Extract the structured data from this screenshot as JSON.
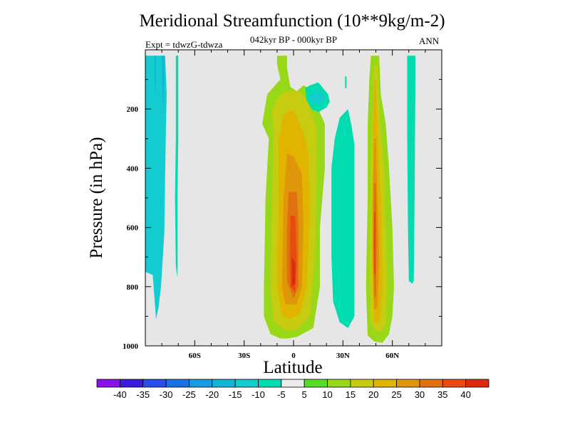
{
  "chart_data": {
    "type": "filled-contour",
    "title": "Meridional Streamfunction (10**9kg/m-2)",
    "subtitle": "042kyr BP - 000kyr BP",
    "experiment_label": "Expt = tdwzG-tdwza",
    "season": "ANN",
    "xlabel": "Latitude",
    "ylabel": "Pressure (in hPa)",
    "xlim": [
      -90,
      90
    ],
    "ylim": [
      1000,
      0
    ],
    "y_reversed": true,
    "xticks": [
      -60,
      -30,
      0,
      30,
      60
    ],
    "xtick_labels": [
      "60S",
      "30S",
      "0",
      "30N",
      "60N"
    ],
    "yticks": [
      200,
      400,
      600,
      800,
      1000
    ],
    "ytick_labels": [
      "200",
      "400",
      "600",
      "800",
      "1000"
    ],
    "background_color": "#e6e6e6",
    "colorbar": {
      "labels": [
        "-40",
        "-35",
        "-30",
        "-25",
        "-20",
        "-15",
        "-10",
        "-5",
        "5",
        "10",
        "15",
        "20",
        "25",
        "30",
        "35",
        "40"
      ],
      "colors": [
        "#8a10e8",
        "#3c1cdc",
        "#2a4ce8",
        "#1a72e0",
        "#1a9ae0",
        "#12b4d8",
        "#12ccd0",
        "#00dcb0",
        "#ececec",
        "#58dc28",
        "#98d818",
        "#c8cc10",
        "#e0b400",
        "#e0960a",
        "#e07010",
        "#e84a10",
        "#e02a10"
      ]
    },
    "regions": [
      {
        "name": "sh-polar-negative-cell",
        "level": -15,
        "points": [
          [
            -90,
            20
          ],
          [
            -78,
            20
          ],
          [
            -77,
            150
          ],
          [
            -77.5,
            260
          ],
          [
            -78,
            440
          ],
          [
            -78.5,
            620
          ],
          [
            -80.5,
            800
          ],
          [
            -82,
            870
          ],
          [
            -83.5,
            910
          ],
          [
            -85.5,
            760
          ],
          [
            -90,
            750
          ]
        ]
      },
      {
        "name": "sh-polar-core-1",
        "level": -20,
        "points": [
          [
            -80,
            20
          ],
          [
            -78.5,
            20
          ],
          [
            -78.7,
            150
          ],
          [
            -79,
            200
          ],
          [
            -79.6,
            150
          ],
          [
            -80,
            20
          ]
        ]
      },
      {
        "name": "sh-polar-core-2",
        "level": -20,
        "points": [
          [
            -84.5,
            20
          ],
          [
            -83.5,
            20
          ],
          [
            -83.5,
            100
          ],
          [
            -84,
            150
          ],
          [
            -84.5,
            100
          ]
        ]
      },
      {
        "name": "sh-thin-column",
        "level": -10,
        "points": [
          [
            -71.5,
            20
          ],
          [
            -70,
            20
          ],
          [
            -70,
            300
          ],
          [
            -70.5,
            500
          ],
          [
            -70.5,
            770
          ],
          [
            -71.5,
            730
          ],
          [
            -72,
            500
          ],
          [
            -71.5,
            300
          ]
        ]
      },
      {
        "name": "eq-plume-main",
        "level": 10,
        "points": [
          [
            -10,
            50
          ],
          [
            -8,
            100
          ],
          [
            -16,
            150
          ],
          [
            -19,
            250
          ],
          [
            -15,
            300
          ],
          [
            -17,
            500
          ],
          [
            -18,
            800
          ],
          [
            -18,
            900
          ],
          [
            -14,
            960
          ],
          [
            -8,
            975
          ],
          [
            -4,
            975
          ],
          [
            2,
            970
          ],
          [
            12,
            940
          ],
          [
            16,
            800
          ],
          [
            16,
            600
          ],
          [
            19,
            400
          ],
          [
            19,
            250
          ],
          [
            15,
            200
          ],
          [
            12,
            160
          ],
          [
            10,
            130
          ],
          [
            6,
            120
          ],
          [
            2,
            140
          ],
          [
            -2,
            125
          ],
          [
            -4,
            60
          ],
          [
            -4,
            20
          ],
          [
            -10,
            20
          ]
        ]
      },
      {
        "name": "eq-plume-15",
        "level": 15,
        "points": [
          [
            -8,
            150
          ],
          [
            -13,
            200
          ],
          [
            -12,
            300
          ],
          [
            -13,
            500
          ],
          [
            -14,
            800
          ],
          [
            -12,
            920
          ],
          [
            -4,
            950
          ],
          [
            2,
            945
          ],
          [
            10,
            900
          ],
          [
            13,
            700
          ],
          [
            14,
            450
          ],
          [
            14,
            260
          ],
          [
            9,
            180
          ],
          [
            4,
            140
          ],
          [
            -4,
            140
          ]
        ]
      },
      {
        "name": "eq-plume-20",
        "level": 20,
        "points": [
          [
            -6,
            220
          ],
          [
            -9,
            300
          ],
          [
            -9,
            500
          ],
          [
            -10,
            800
          ],
          [
            -7,
            900
          ],
          [
            -2,
            910
          ],
          [
            4,
            890
          ],
          [
            8,
            800
          ],
          [
            10,
            550
          ],
          [
            9,
            350
          ],
          [
            6,
            280
          ],
          [
            0,
            200
          ]
        ]
      },
      {
        "name": "eq-plume-25",
        "level": 25,
        "points": [
          [
            -4,
            350
          ],
          [
            -6,
            500
          ],
          [
            -7,
            800
          ],
          [
            -5,
            860
          ],
          [
            2,
            860
          ],
          [
            5,
            800
          ],
          [
            6,
            600
          ],
          [
            5,
            420
          ],
          [
            0,
            360
          ]
        ]
      },
      {
        "name": "eq-plume-30",
        "level": 30,
        "points": [
          [
            -3,
            480
          ],
          [
            -4,
            600
          ],
          [
            -4,
            780
          ],
          [
            0,
            840
          ],
          [
            3,
            800
          ],
          [
            3,
            600
          ],
          [
            2,
            480
          ]
        ]
      },
      {
        "name": "eq-plume-35",
        "level": 35,
        "points": [
          [
            -2,
            560
          ],
          [
            -2,
            800
          ],
          [
            1,
            820
          ],
          [
            2,
            720
          ],
          [
            1,
            560
          ]
        ]
      },
      {
        "name": "eq-plume-40",
        "level": 40,
        "points": [
          [
            -1,
            700
          ],
          [
            -1,
            800
          ],
          [
            1,
            790
          ],
          [
            1,
            720
          ]
        ]
      },
      {
        "name": "nh-blob-negative",
        "level": -10,
        "points": [
          [
            7,
            130
          ],
          [
            10,
            120
          ],
          [
            15,
            110
          ],
          [
            18,
            130
          ],
          [
            21,
            150
          ],
          [
            22,
            175
          ],
          [
            20,
            195
          ],
          [
            15,
            210
          ],
          [
            11,
            200
          ],
          [
            8,
            170
          ]
        ]
      },
      {
        "name": "nh-blob-core",
        "level": -15,
        "points": [
          [
            9,
            160
          ],
          [
            12,
            145
          ],
          [
            17,
            140
          ],
          [
            19,
            160
          ],
          [
            17,
            180
          ],
          [
            12,
            180
          ]
        ]
      },
      {
        "name": "nh-small-dash",
        "level": -10,
        "points": [
          [
            31.3,
            90
          ],
          [
            32.2,
            90
          ],
          [
            32.2,
            130
          ],
          [
            31.3,
            130
          ]
        ]
      },
      {
        "name": "subtropical-negative-column",
        "level": -10,
        "points": [
          [
            25,
            300
          ],
          [
            28,
            230
          ],
          [
            33,
            200
          ],
          [
            35,
            250
          ],
          [
            37,
            320
          ],
          [
            37,
            900
          ],
          [
            33,
            940
          ],
          [
            28,
            920
          ],
          [
            24,
            850
          ],
          [
            23,
            700
          ],
          [
            23,
            400
          ]
        ]
      },
      {
        "name": "nh-midlat-positive",
        "level": 10,
        "points": [
          [
            47,
            20
          ],
          [
            52,
            20
          ],
          [
            53,
            150
          ],
          [
            56,
            250
          ],
          [
            58,
            400
          ],
          [
            60,
            600
          ],
          [
            61,
            800
          ],
          [
            60,
            900
          ],
          [
            58,
            960
          ],
          [
            54,
            990
          ],
          [
            49,
            985
          ],
          [
            45,
            965
          ],
          [
            44,
            800
          ],
          [
            45,
            500
          ],
          [
            45,
            250
          ],
          [
            46,
            100
          ]
        ]
      },
      {
        "name": "nh-midlat-15",
        "level": 15,
        "points": [
          [
            49,
            50
          ],
          [
            51,
            50
          ],
          [
            52,
            200
          ],
          [
            55,
            400
          ],
          [
            56,
            600
          ],
          [
            57,
            800
          ],
          [
            56,
            930
          ],
          [
            53,
            950
          ],
          [
            50,
            950
          ],
          [
            47,
            920
          ],
          [
            46,
            700
          ],
          [
            47,
            400
          ],
          [
            48,
            200
          ]
        ]
      },
      {
        "name": "nh-midlat-20",
        "level": 20,
        "points": [
          [
            49,
            100
          ],
          [
            50,
            100
          ],
          [
            51,
            300
          ],
          [
            53,
            500
          ],
          [
            54,
            800
          ],
          [
            52,
            920
          ],
          [
            49,
            920
          ],
          [
            48,
            800
          ],
          [
            48,
            500
          ],
          [
            48,
            300
          ]
        ]
      },
      {
        "name": "nh-midlat-25",
        "level": 25,
        "points": [
          [
            49,
            300
          ],
          [
            50,
            300
          ],
          [
            51,
            500
          ],
          [
            52,
            700
          ],
          [
            51,
            870
          ],
          [
            49,
            880
          ],
          [
            48,
            700
          ],
          [
            48,
            500
          ]
        ]
      },
      {
        "name": "nh-midlat-30",
        "level": 30,
        "points": [
          [
            49,
            450
          ],
          [
            50,
            450
          ],
          [
            50.5,
            650
          ],
          [
            50,
            830
          ],
          [
            49,
            840
          ],
          [
            48.5,
            650
          ]
        ]
      },
      {
        "name": "nh-midlat-35",
        "level": 35,
        "points": [
          [
            49,
            550
          ],
          [
            49.8,
            550
          ],
          [
            49.8,
            750
          ],
          [
            49,
            760
          ],
          [
            48.7,
            700
          ]
        ]
      },
      {
        "name": "nh-highlat-negative",
        "level": -10,
        "points": [
          [
            69,
            20
          ],
          [
            74,
            20
          ],
          [
            74,
            100
          ],
          [
            73.5,
            500
          ],
          [
            73,
            780
          ],
          [
            72,
            790
          ],
          [
            70,
            780
          ],
          [
            69.5,
            600
          ],
          [
            69,
            300
          ],
          [
            69,
            100
          ]
        ]
      }
    ]
  }
}
